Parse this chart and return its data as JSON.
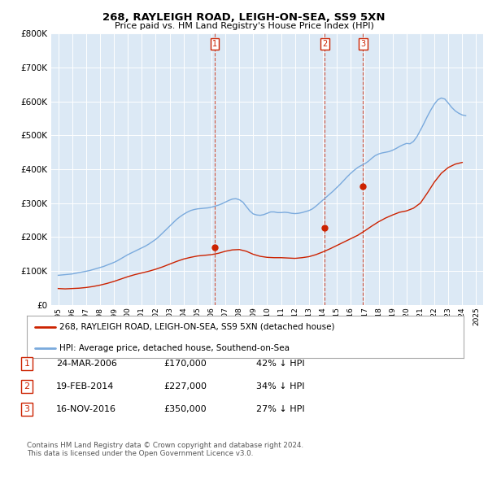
{
  "title": "268, RAYLEIGH ROAD, LEIGH-ON-SEA, SS9 5XN",
  "subtitle": "Price paid vs. HM Land Registry's House Price Index (HPI)",
  "background_color": "#ffffff",
  "plot_bg_color": "#dce9f5",
  "grid_color": "#ffffff",
  "hpi_color": "#7aaadd",
  "property_color": "#cc2200",
  "vline_color": "#cc2200",
  "ylim": [
    0,
    800000
  ],
  "yticks": [
    0,
    100000,
    200000,
    300000,
    400000,
    500000,
    600000,
    700000,
    800000
  ],
  "ytick_labels": [
    "£0",
    "£100K",
    "£200K",
    "£300K",
    "£400K",
    "£500K",
    "£600K",
    "£700K",
    "£800K"
  ],
  "xlim": [
    1994.5,
    2025.5
  ],
  "xticks": [
    1995,
    1996,
    1997,
    1998,
    1999,
    2000,
    2001,
    2002,
    2003,
    2004,
    2005,
    2006,
    2007,
    2008,
    2009,
    2010,
    2011,
    2012,
    2013,
    2014,
    2015,
    2016,
    2017,
    2018,
    2019,
    2020,
    2021,
    2022,
    2023,
    2024,
    2025
  ],
  "transactions": [
    {
      "num": 1,
      "date": "24-MAR-2006",
      "price": 170000,
      "hpi_diff": "42% ↓ HPI",
      "x_year": 2006.22
    },
    {
      "num": 2,
      "date": "19-FEB-2014",
      "price": 227000,
      "hpi_diff": "34% ↓ HPI",
      "x_year": 2014.13
    },
    {
      "num": 3,
      "date": "16-NOV-2016",
      "price": 350000,
      "hpi_diff": "27% ↓ HPI",
      "x_year": 2016.88
    }
  ],
  "legend_property": "268, RAYLEIGH ROAD, LEIGH-ON-SEA, SS9 5XN (detached house)",
  "legend_hpi": "HPI: Average price, detached house, Southend-on-Sea",
  "footnote1": "Contains HM Land Registry data © Crown copyright and database right 2024.",
  "footnote2": "This data is licensed under the Open Government Licence v3.0.",
  "hpi_years": [
    1995.0,
    1995.25,
    1995.5,
    1995.75,
    1996.0,
    1996.25,
    1996.5,
    1996.75,
    1997.0,
    1997.25,
    1997.5,
    1997.75,
    1998.0,
    1998.25,
    1998.5,
    1998.75,
    1999.0,
    1999.25,
    1999.5,
    1999.75,
    2000.0,
    2000.25,
    2000.5,
    2000.75,
    2001.0,
    2001.25,
    2001.5,
    2001.75,
    2002.0,
    2002.25,
    2002.5,
    2002.75,
    2003.0,
    2003.25,
    2003.5,
    2003.75,
    2004.0,
    2004.25,
    2004.5,
    2004.75,
    2005.0,
    2005.25,
    2005.5,
    2005.75,
    2006.0,
    2006.25,
    2006.5,
    2006.75,
    2007.0,
    2007.25,
    2007.5,
    2007.75,
    2008.0,
    2008.25,
    2008.5,
    2008.75,
    2009.0,
    2009.25,
    2009.5,
    2009.75,
    2010.0,
    2010.25,
    2010.5,
    2010.75,
    2011.0,
    2011.25,
    2011.5,
    2011.75,
    2012.0,
    2012.25,
    2012.5,
    2012.75,
    2013.0,
    2013.25,
    2013.5,
    2013.75,
    2014.0,
    2014.25,
    2014.5,
    2014.75,
    2015.0,
    2015.25,
    2015.5,
    2015.75,
    2016.0,
    2016.25,
    2016.5,
    2016.75,
    2017.0,
    2017.25,
    2017.5,
    2017.75,
    2018.0,
    2018.25,
    2018.5,
    2018.75,
    2019.0,
    2019.25,
    2019.5,
    2019.75,
    2020.0,
    2020.25,
    2020.5,
    2020.75,
    2021.0,
    2021.25,
    2021.5,
    2021.75,
    2022.0,
    2022.25,
    2022.5,
    2022.75,
    2023.0,
    2023.25,
    2023.5,
    2023.75,
    2024.0,
    2024.25
  ],
  "hpi_values": [
    87000,
    88000,
    89000,
    90000,
    91000,
    93000,
    95000,
    97000,
    99000,
    101000,
    104000,
    107000,
    110000,
    113000,
    117000,
    121000,
    125000,
    130000,
    136000,
    142000,
    148000,
    153000,
    158000,
    163000,
    168000,
    173000,
    179000,
    186000,
    193000,
    202000,
    212000,
    222000,
    232000,
    242000,
    252000,
    260000,
    267000,
    273000,
    278000,
    281000,
    283000,
    284000,
    285000,
    286000,
    288000,
    291000,
    294000,
    298000,
    303000,
    308000,
    312000,
    313000,
    310000,
    303000,
    290000,
    277000,
    268000,
    265000,
    264000,
    266000,
    270000,
    274000,
    274000,
    272000,
    272000,
    273000,
    272000,
    270000,
    269000,
    270000,
    272000,
    275000,
    278000,
    283000,
    291000,
    300000,
    309000,
    318000,
    327000,
    336000,
    346000,
    356000,
    367000,
    378000,
    388000,
    397000,
    405000,
    411000,
    416000,
    423000,
    432000,
    440000,
    445000,
    448000,
    450000,
    452000,
    456000,
    461000,
    467000,
    472000,
    476000,
    475000,
    482000,
    496000,
    515000,
    535000,
    556000,
    575000,
    592000,
    605000,
    610000,
    607000,
    595000,
    582000,
    572000,
    565000,
    560000,
    558000
  ],
  "prop_years": [
    1995.0,
    1995.5,
    1996.0,
    1996.5,
    1997.0,
    1997.5,
    1998.0,
    1998.5,
    1999.0,
    1999.5,
    2000.0,
    2000.5,
    2001.0,
    2001.5,
    2002.0,
    2002.5,
    2003.0,
    2003.5,
    2004.0,
    2004.5,
    2005.0,
    2005.5,
    2006.0,
    2006.5,
    2007.0,
    2007.5,
    2008.0,
    2008.5,
    2009.0,
    2009.5,
    2010.0,
    2010.5,
    2011.0,
    2011.5,
    2012.0,
    2012.5,
    2013.0,
    2013.5,
    2014.0,
    2014.5,
    2015.0,
    2015.5,
    2016.0,
    2016.5,
    2017.0,
    2017.5,
    2018.0,
    2018.5,
    2019.0,
    2019.5,
    2020.0,
    2020.5,
    2021.0,
    2021.5,
    2022.0,
    2022.5,
    2023.0,
    2023.5,
    2024.0
  ],
  "prop_values": [
    48000,
    47000,
    48000,
    49000,
    51000,
    54000,
    58000,
    63000,
    69000,
    76000,
    83000,
    89000,
    94000,
    99000,
    105000,
    112000,
    120000,
    128000,
    135000,
    140000,
    144000,
    146000,
    148000,
    152000,
    158000,
    162000,
    163000,
    158000,
    149000,
    143000,
    140000,
    139000,
    139000,
    138000,
    137000,
    139000,
    142000,
    148000,
    156000,
    165000,
    175000,
    185000,
    195000,
    205000,
    218000,
    232000,
    245000,
    256000,
    265000,
    273000,
    277000,
    285000,
    300000,
    330000,
    362000,
    388000,
    405000,
    415000,
    420000
  ]
}
